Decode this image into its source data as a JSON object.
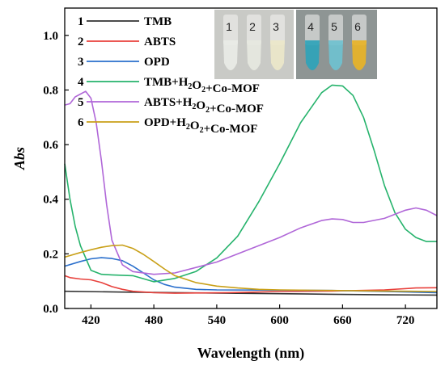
{
  "chart_data": {
    "type": "line",
    "xlabel": "Wavelength (nm)",
    "ylabel": "Abs",
    "xlim": [
      395,
      750
    ],
    "ylim": [
      0,
      1.1
    ],
    "xticks": [
      420,
      480,
      540,
      600,
      660,
      720
    ],
    "yticks": [
      0.0,
      0.2,
      0.4,
      0.6,
      0.8,
      1.0
    ],
    "grid": false,
    "legend_position": "top-left",
    "series": [
      {
        "id": "1",
        "name": "TMB",
        "color": "#333333",
        "x": [
          395,
          450,
          500,
          550,
          600,
          650,
          700,
          750
        ],
        "y": [
          0.063,
          0.06,
          0.058,
          0.056,
          0.054,
          0.052,
          0.05,
          0.049
        ]
      },
      {
        "id": "2",
        "name": "ABTS",
        "color": "#e8413c",
        "x": [
          395,
          400,
          410,
          420,
          430,
          440,
          450,
          460,
          480,
          500,
          550,
          600,
          650,
          700,
          730,
          750
        ],
        "y": [
          0.12,
          0.113,
          0.108,
          0.105,
          0.095,
          0.08,
          0.07,
          0.063,
          0.058,
          0.056,
          0.058,
          0.062,
          0.064,
          0.068,
          0.075,
          0.076
        ]
      },
      {
        "id": "3",
        "name": "OPD",
        "color": "#2a6fcc",
        "x": [
          395,
          410,
          420,
          430,
          440,
          450,
          460,
          470,
          480,
          490,
          500,
          520,
          540,
          600,
          650,
          700,
          750
        ],
        "y": [
          0.155,
          0.172,
          0.182,
          0.186,
          0.183,
          0.175,
          0.155,
          0.13,
          0.105,
          0.088,
          0.078,
          0.07,
          0.068,
          0.067,
          0.066,
          0.062,
          0.058
        ]
      },
      {
        "id": "4",
        "name": "TMB+H₂O₂+Co-MOF",
        "color": "#26b36c",
        "x": [
          395,
          400,
          405,
          410,
          420,
          430,
          440,
          460,
          480,
          500,
          520,
          540,
          560,
          580,
          600,
          620,
          640,
          650,
          660,
          670,
          680,
          690,
          700,
          710,
          720,
          730,
          740,
          750
        ],
        "y": [
          0.53,
          0.4,
          0.3,
          0.23,
          0.14,
          0.125,
          0.123,
          0.12,
          0.098,
          0.11,
          0.135,
          0.185,
          0.265,
          0.39,
          0.53,
          0.68,
          0.79,
          0.818,
          0.815,
          0.78,
          0.7,
          0.58,
          0.45,
          0.35,
          0.29,
          0.26,
          0.245,
          0.245
        ]
      },
      {
        "id": "5",
        "name": "ABTS+H₂O₂+Co-MOF",
        "color": "#b067d8",
        "x": [
          395,
          400,
          405,
          410,
          415,
          420,
          425,
          430,
          435,
          440,
          450,
          460,
          480,
          500,
          540,
          580,
          600,
          620,
          640,
          650,
          660,
          670,
          680,
          700,
          720,
          730,
          740,
          750
        ],
        "y": [
          0.745,
          0.75,
          0.775,
          0.785,
          0.795,
          0.77,
          0.68,
          0.54,
          0.38,
          0.25,
          0.16,
          0.135,
          0.125,
          0.13,
          0.17,
          0.23,
          0.26,
          0.295,
          0.322,
          0.328,
          0.326,
          0.315,
          0.315,
          0.33,
          0.36,
          0.368,
          0.36,
          0.34
        ]
      },
      {
        "id": "6",
        "name": "OPD+H₂O₂+Co-MOF",
        "color": "#c9a018",
        "x": [
          395,
          410,
          420,
          430,
          440,
          450,
          460,
          470,
          480,
          490,
          500,
          520,
          540,
          560,
          580,
          600,
          650,
          700,
          750
        ],
        "y": [
          0.188,
          0.205,
          0.215,
          0.224,
          0.23,
          0.232,
          0.22,
          0.198,
          0.172,
          0.145,
          0.12,
          0.095,
          0.082,
          0.075,
          0.07,
          0.068,
          0.066,
          0.064,
          0.062
        ]
      }
    ],
    "legend": [
      {
        "num": "1",
        "label": "TMB"
      },
      {
        "num": "2",
        "label": "ABTS"
      },
      {
        "num": "3",
        "label": "OPD"
      },
      {
        "num": "4",
        "label": "TMB+H₂O₂+Co-MOF"
      },
      {
        "num": "5",
        "label": "ABTS+H₂O₂+Co-MOF"
      },
      {
        "num": "6",
        "label": "OPD+H₂O₂+Co-MOF"
      }
    ],
    "inset_photo": {
      "left_panel": {
        "labels": [
          "1",
          "2",
          "3"
        ],
        "tube_colors": [
          "#e9ece6",
          "#e6e8e0",
          "#ece7c9"
        ],
        "background": "#c9cac6"
      },
      "right_panel": {
        "labels": [
          "4",
          "5",
          "6"
        ],
        "tube_colors": [
          "#2fa3b8",
          "#6fc1cf",
          "#e8b327"
        ],
        "background": "#8e9594"
      }
    }
  }
}
